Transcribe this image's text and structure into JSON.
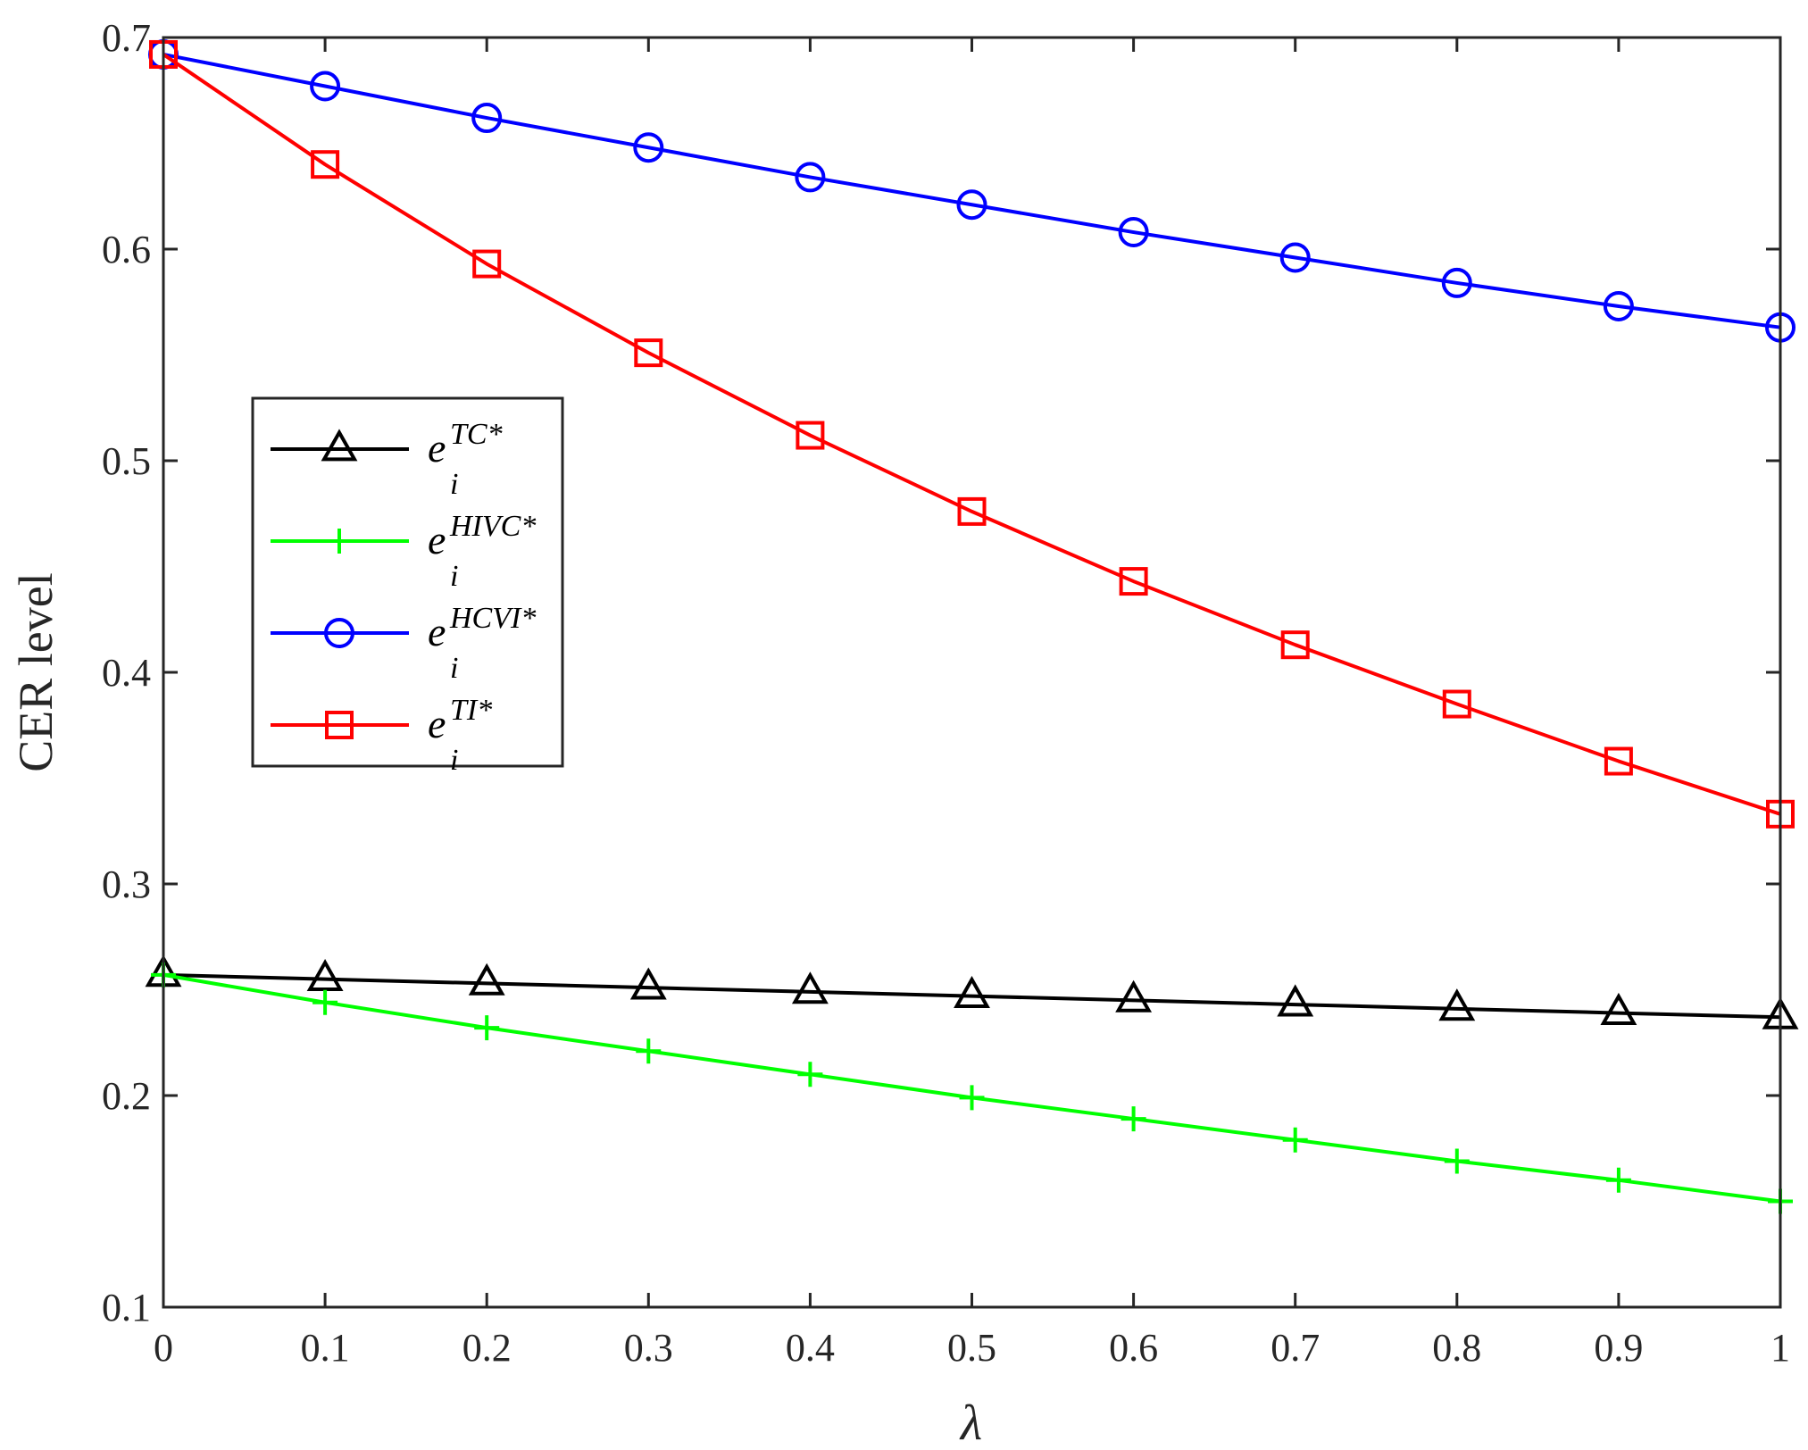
{
  "chart_data": {
    "type": "line",
    "xlabel": "λ",
    "ylabel": "CER level",
    "xlim": [
      0,
      1
    ],
    "ylim": [
      0.1,
      0.7
    ],
    "xticks": [
      "0",
      "0.1",
      "0.2",
      "0.3",
      "0.4",
      "0.5",
      "0.6",
      "0.7",
      "0.8",
      "0.9",
      "1"
    ],
    "yticks": [
      "0.1",
      "0.2",
      "0.3",
      "0.4",
      "0.5",
      "0.6",
      "0.7"
    ],
    "x": [
      0,
      0.1,
      0.2,
      0.3,
      0.4,
      0.5,
      0.6,
      0.7,
      0.8,
      0.9,
      1
    ],
    "grid": false,
    "legend_position": "center-left",
    "series": [
      {
        "name": "e_i^{TC*}",
        "legend_base": "e",
        "legend_sup": "TC*",
        "legend_sub": "i",
        "color": "#000000",
        "marker": "triangle",
        "values": [
          0.257,
          0.255,
          0.253,
          0.251,
          0.249,
          0.247,
          0.245,
          0.243,
          0.241,
          0.239,
          0.237
        ]
      },
      {
        "name": "e_i^{HIVC*}",
        "legend_base": "e",
        "legend_sup": "HIVC*",
        "legend_sub": "i",
        "color": "#00ff00",
        "marker": "plus",
        "values": [
          0.257,
          0.244,
          0.232,
          0.221,
          0.21,
          0.199,
          0.189,
          0.179,
          0.169,
          0.16,
          0.15
        ]
      },
      {
        "name": "e_i^{HCVI*}",
        "legend_base": "e",
        "legend_sup": "HCVI*",
        "legend_sub": "i",
        "color": "#0000ff",
        "marker": "circle",
        "values": [
          0.692,
          0.677,
          0.662,
          0.648,
          0.634,
          0.621,
          0.608,
          0.596,
          0.584,
          0.573,
          0.563
        ]
      },
      {
        "name": "e_i^{TI*}",
        "legend_base": "e",
        "legend_sup": "TI*",
        "legend_sub": "i",
        "color": "#ff0000",
        "marker": "square",
        "values": [
          0.692,
          0.64,
          0.593,
          0.551,
          0.512,
          0.476,
          0.443,
          0.413,
          0.385,
          0.358,
          0.333
        ]
      }
    ]
  }
}
